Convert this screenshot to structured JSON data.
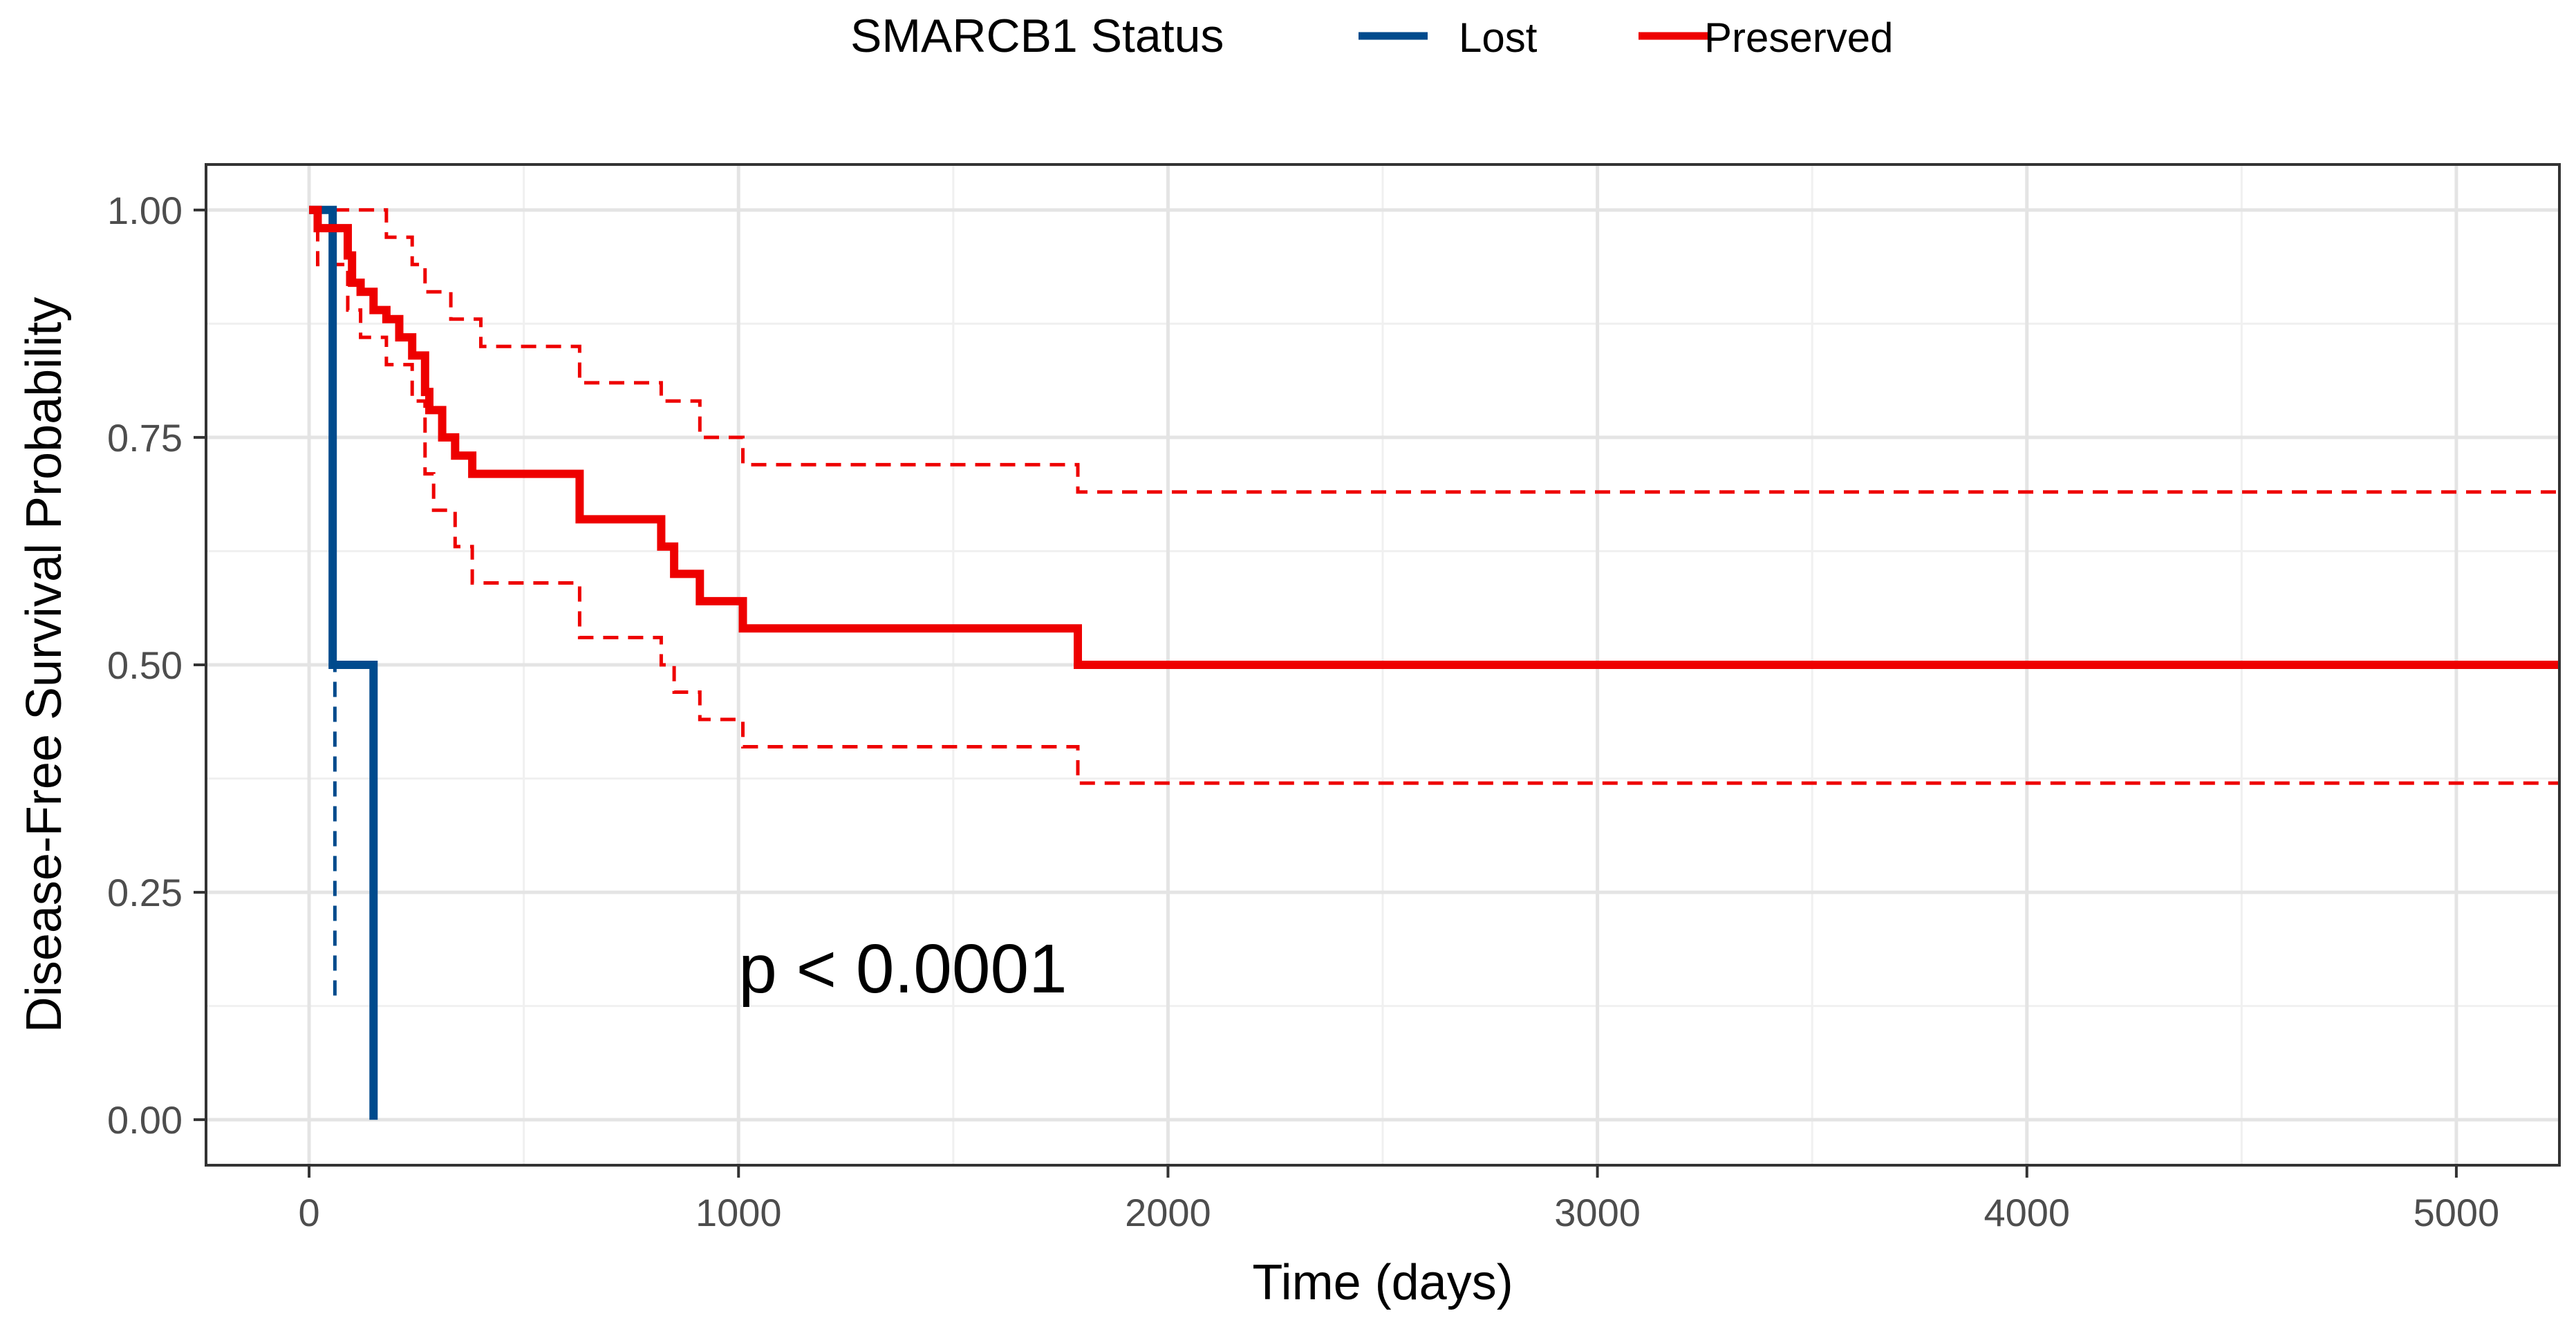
{
  "chart_data": {
    "type": "line",
    "subtype": "kaplan-meier step",
    "title": "",
    "xlabel": "Time (days)",
    "ylabel": "Disease-Free Survival Probability",
    "xlim": [
      -240,
      5240
    ],
    "ylim": [
      -0.05,
      1.05
    ],
    "x_ticks": [
      0,
      1000,
      2000,
      3000,
      4000,
      5000
    ],
    "x_tick_labels": [
      "0",
      "1000",
      "2000",
      "3000",
      "4000",
      "5000"
    ],
    "y_ticks": [
      0,
      0.25,
      0.5,
      0.75,
      1.0
    ],
    "y_tick_labels": [
      "0.00",
      "0.25",
      "0.50",
      "0.75",
      "1.00"
    ],
    "grid": true,
    "legend": {
      "title": "SMARCB1 Status",
      "position": "top",
      "entries": [
        "Lost",
        "Preserved"
      ]
    },
    "annotation": "p < 0.0001",
    "annotation_position": {
      "x": 1000,
      "y": 0.14
    },
    "series": [
      {
        "name": "Lost",
        "color": "#004b8d",
        "survival": [
          [
            0,
            1.0
          ],
          [
            55,
            1.0
          ],
          [
            55,
            0.5
          ],
          [
            150,
            0.5
          ],
          [
            150,
            0.0
          ]
        ],
        "ci_lower": [
          [
            0,
            1.0
          ],
          [
            55,
            1.0
          ],
          [
            55,
            0.5
          ],
          [
            60,
            0.5
          ],
          [
            60,
            0.13
          ]
        ],
        "ci_upper": []
      },
      {
        "name": "Preserved",
        "color": "#ee0000",
        "survival": [
          [
            0,
            1.0
          ],
          [
            20,
            1.0
          ],
          [
            20,
            0.98
          ],
          [
            90,
            0.98
          ],
          [
            90,
            0.95
          ],
          [
            100,
            0.95
          ],
          [
            100,
            0.92
          ],
          [
            120,
            0.92
          ],
          [
            120,
            0.91
          ],
          [
            150,
            0.91
          ],
          [
            150,
            0.89
          ],
          [
            180,
            0.89
          ],
          [
            180,
            0.88
          ],
          [
            210,
            0.88
          ],
          [
            210,
            0.86
          ],
          [
            240,
            0.86
          ],
          [
            240,
            0.84
          ],
          [
            270,
            0.84
          ],
          [
            270,
            0.8
          ],
          [
            280,
            0.8
          ],
          [
            280,
            0.78
          ],
          [
            310,
            0.78
          ],
          [
            310,
            0.75
          ],
          [
            340,
            0.75
          ],
          [
            340,
            0.73
          ],
          [
            380,
            0.73
          ],
          [
            380,
            0.71
          ],
          [
            630,
            0.71
          ],
          [
            630,
            0.66
          ],
          [
            820,
            0.66
          ],
          [
            820,
            0.63
          ],
          [
            850,
            0.63
          ],
          [
            850,
            0.6
          ],
          [
            910,
            0.6
          ],
          [
            910,
            0.57
          ],
          [
            1010,
            0.57
          ],
          [
            1010,
            0.54
          ],
          [
            1790,
            0.54
          ],
          [
            1790,
            0.5
          ],
          [
            5240,
            0.5
          ]
        ],
        "ci_lower": [
          [
            0,
            1.0
          ],
          [
            20,
            1.0
          ],
          [
            20,
            0.94
          ],
          [
            90,
            0.94
          ],
          [
            90,
            0.89
          ],
          [
            120,
            0.89
          ],
          [
            120,
            0.86
          ],
          [
            180,
            0.86
          ],
          [
            180,
            0.83
          ],
          [
            240,
            0.83
          ],
          [
            240,
            0.79
          ],
          [
            270,
            0.79
          ],
          [
            270,
            0.71
          ],
          [
            290,
            0.71
          ],
          [
            290,
            0.67
          ],
          [
            340,
            0.67
          ],
          [
            340,
            0.63
          ],
          [
            380,
            0.63
          ],
          [
            380,
            0.59
          ],
          [
            630,
            0.59
          ],
          [
            630,
            0.53
          ],
          [
            820,
            0.53
          ],
          [
            820,
            0.5
          ],
          [
            850,
            0.5
          ],
          [
            850,
            0.47
          ],
          [
            910,
            0.47
          ],
          [
            910,
            0.44
          ],
          [
            1010,
            0.44
          ],
          [
            1010,
            0.41
          ],
          [
            1790,
            0.41
          ],
          [
            1790,
            0.37
          ],
          [
            5240,
            0.37
          ]
        ],
        "ci_upper": [
          [
            0,
            1.0
          ],
          [
            180,
            1.0
          ],
          [
            180,
            0.97
          ],
          [
            240,
            0.97
          ],
          [
            240,
            0.94
          ],
          [
            270,
            0.94
          ],
          [
            270,
            0.91
          ],
          [
            330,
            0.91
          ],
          [
            330,
            0.88
          ],
          [
            400,
            0.88
          ],
          [
            400,
            0.85
          ],
          [
            630,
            0.85
          ],
          [
            630,
            0.81
          ],
          [
            820,
            0.81
          ],
          [
            820,
            0.79
          ],
          [
            910,
            0.79
          ],
          [
            910,
            0.75
          ],
          [
            1010,
            0.75
          ],
          [
            1010,
            0.72
          ],
          [
            1790,
            0.72
          ],
          [
            1790,
            0.69
          ],
          [
            5240,
            0.69
          ]
        ]
      }
    ]
  }
}
